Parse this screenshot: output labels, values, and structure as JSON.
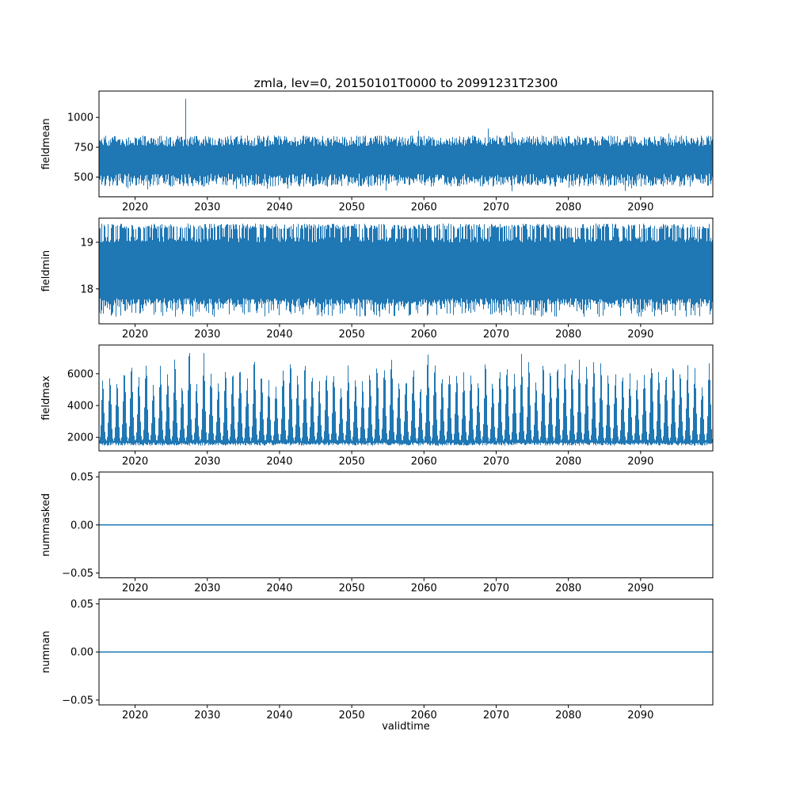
{
  "figure": {
    "title": "zmla, lev=0, 20150101T0000 to 20991231T2300",
    "xlabel": "validtime",
    "background": "#ffffff",
    "line_color": "#1f77b4",
    "text_color": "#000000"
  },
  "chart_data": [
    {
      "type": "line",
      "name": "fieldmean",
      "ylabel": "fieldmean",
      "x": {
        "min": 2015,
        "max": 2100,
        "ticks": [
          2020,
          2030,
          2040,
          2050,
          2060,
          2070,
          2080,
          2090
        ]
      },
      "y": {
        "min": 335,
        "max": 1220,
        "ticks": [
          {
            "value": 1000,
            "label": "1000"
          },
          {
            "value": 750,
            "label": "750"
          },
          {
            "value": 500,
            "label": "500"
          }
        ]
      },
      "series": {
        "kind": "noise-band",
        "seed": 11,
        "high_modes": [
          {
            "p": 0.996,
            "range": [
              758,
              848
            ]
          },
          {
            "p": 0.004,
            "range": [
              860,
              915
            ]
          }
        ],
        "low_modes": [
          {
            "p": 0.985,
            "range": [
              420,
              530
            ]
          },
          {
            "p": 0.015,
            "range": [
              382,
              425
            ]
          }
        ],
        "spikes": [
          {
            "x": 2027,
            "value": 1155
          }
        ]
      },
      "description": "Dense high-frequency series with envelope approx 420-850 and one isolated spike to approx 1150 near 2027"
    },
    {
      "type": "line",
      "name": "fieldmin",
      "ylabel": "fieldmin",
      "x": {
        "min": 2015,
        "max": 2100,
        "ticks": [
          2020,
          2030,
          2040,
          2050,
          2060,
          2070,
          2080,
          2090
        ]
      },
      "y": {
        "min": 17.25,
        "max": 19.52,
        "ticks": [
          {
            "value": 19,
            "label": "19"
          },
          {
            "value": 18,
            "label": "18"
          }
        ]
      },
      "series": {
        "kind": "noise-band",
        "seed": 23,
        "high_modes": [
          {
            "p": 0.62,
            "range": [
              19.28,
              19.4
            ]
          },
          {
            "p": 0.38,
            "range": [
              19.0,
              19.12
            ]
          }
        ],
        "low_modes": [
          {
            "p": 0.55,
            "range": [
              17.66,
              17.8
            ]
          },
          {
            "p": 0.45,
            "range": [
              17.4,
              17.7
            ]
          }
        ]
      },
      "description": "Dense high-frequency series oscillating between approx 17.4 and 19.4"
    },
    {
      "type": "line",
      "name": "fieldmax",
      "ylabel": "fieldmax",
      "x": {
        "min": 2015,
        "max": 2100,
        "ticks": [
          2020,
          2030,
          2040,
          2050,
          2060,
          2070,
          2080,
          2090
        ]
      },
      "y": {
        "min": 1150,
        "max": 7800,
        "ticks": [
          {
            "value": 6000,
            "label": "6000"
          },
          {
            "value": 4000,
            "label": "4000"
          },
          {
            "value": 2000,
            "label": "2000"
          }
        ]
      },
      "series": {
        "kind": "seasonal-spikes",
        "seed": 5,
        "trough_range": [
          1480,
          1680
        ],
        "base": 1750,
        "peak_range": [
          5100,
          6950
        ],
        "peak_overrides": {
          "2027": 7350,
          "2060": 7150
        },
        "sigma": 0.16,
        "phase": 0.52
      },
      "description": "Annual cycle: troughs approx 1500-1750, yearly peaks varying approx 5100-7350"
    },
    {
      "type": "line",
      "name": "nummasked",
      "ylabel": "nummasked",
      "x": {
        "min": 2015,
        "max": 2100,
        "ticks": [
          2020,
          2030,
          2040,
          2050,
          2060,
          2070,
          2080,
          2090
        ]
      },
      "y": {
        "min": -0.055,
        "max": 0.055,
        "ticks": [
          {
            "value": 0.05,
            "label": "0.05"
          },
          {
            "value": 0,
            "label": "0.00"
          },
          {
            "value": -0.05,
            "label": "−0.05"
          }
        ]
      },
      "series": {
        "kind": "constant",
        "value": 0
      },
      "description": "Constant zero line"
    },
    {
      "type": "line",
      "name": "numnan",
      "ylabel": "numnan",
      "x": {
        "min": 2015,
        "max": 2100,
        "ticks": [
          2020,
          2030,
          2040,
          2050,
          2060,
          2070,
          2080,
          2090
        ]
      },
      "y": {
        "min": -0.055,
        "max": 0.055,
        "ticks": [
          {
            "value": 0.05,
            "label": "0.05"
          },
          {
            "value": 0,
            "label": "0.00"
          },
          {
            "value": -0.05,
            "label": "−0.05"
          }
        ]
      },
      "series": {
        "kind": "constant",
        "value": 0
      },
      "description": "Constant zero line"
    }
  ]
}
